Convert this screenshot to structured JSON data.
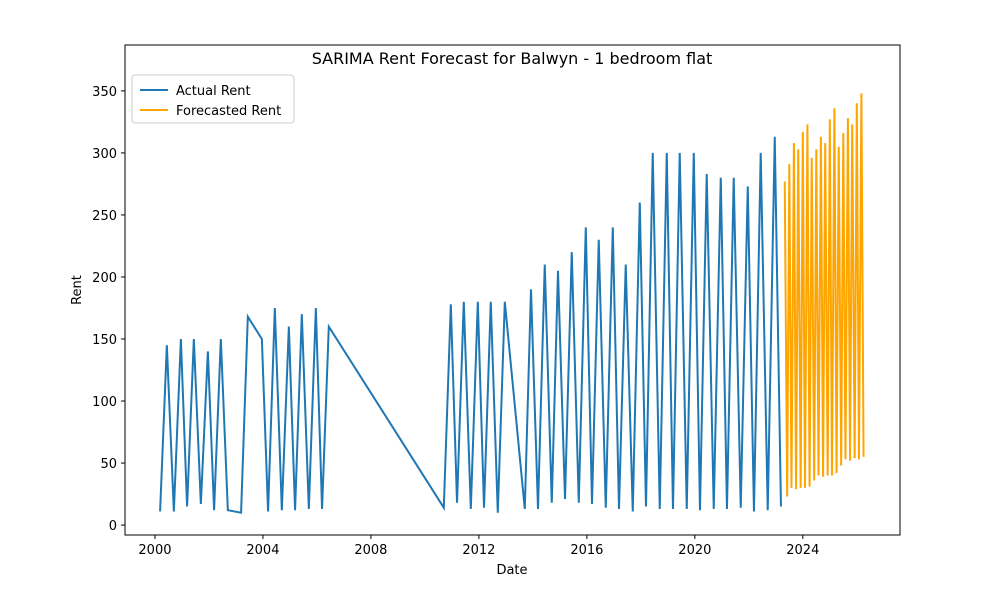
{
  "chart_data": {
    "type": "line",
    "title": "SARIMA Rent Forecast for Balwyn - 1 bedroom flat",
    "xlabel": "Date",
    "ylabel": "Rent",
    "xlim": [
      1998.89,
      2027.6
    ],
    "ylim": [
      -8,
      387
    ],
    "xticks": [
      2000,
      2004,
      2008,
      2012,
      2016,
      2020,
      2024
    ],
    "yticks": [
      0,
      50,
      100,
      150,
      200,
      250,
      300,
      350
    ],
    "legend": "upper left",
    "series": [
      {
        "name": "Actual Rent",
        "color": "#1f77b4",
        "x": [
          2000.19,
          2000.44,
          2000.7,
          2000.96,
          2001.19,
          2001.44,
          2001.7,
          2001.96,
          2002.19,
          2002.44,
          2002.7,
          2003.19,
          2003.44,
          2003.96,
          2004.19,
          2004.44,
          2004.7,
          2004.96,
          2005.19,
          2005.44,
          2005.7,
          2005.96,
          2006.19,
          2006.44,
          2010.7,
          2010.96,
          2011.19,
          2011.44,
          2011.7,
          2011.96,
          2012.19,
          2012.44,
          2012.7,
          2012.96,
          2013.7,
          2013.93,
          2014.19,
          2014.44,
          2014.7,
          2014.93,
          2015.19,
          2015.44,
          2015.7,
          2015.96,
          2016.19,
          2016.44,
          2016.7,
          2016.96,
          2017.19,
          2017.44,
          2017.7,
          2017.96,
          2018.19,
          2018.44,
          2018.7,
          2018.96,
          2019.19,
          2019.44,
          2019.7,
          2019.96,
          2020.19,
          2020.44,
          2020.7,
          2020.96,
          2021.19,
          2021.44,
          2021.7,
          2021.96,
          2022.19,
          2022.44,
          2022.7,
          2022.96,
          2023.19
        ],
        "values": [
          11,
          145,
          11,
          150,
          15,
          150,
          17,
          140,
          12,
          150,
          12,
          10,
          168,
          150,
          11,
          175,
          12,
          160,
          12,
          170,
          13,
          175,
          13,
          160,
          14,
          178,
          18,
          180,
          13,
          180,
          14,
          180,
          10,
          180,
          13,
          190,
          13,
          210,
          18,
          205,
          21,
          220,
          18,
          240,
          17,
          230,
          14,
          240,
          13,
          210,
          11,
          260,
          15,
          300,
          13,
          300,
          13,
          300,
          13,
          300,
          12,
          283,
          13,
          280,
          13,
          280,
          14,
          273,
          11,
          300,
          12,
          313,
          15
        ]
      },
      {
        "name": "Forecasted Rent",
        "color": "#ffa500",
        "x": [
          2023.33,
          2023.42,
          2023.5,
          2023.58,
          2023.67,
          2023.75,
          2023.83,
          2023.92,
          2024.0,
          2024.08,
          2024.17,
          2024.25,
          2024.33,
          2024.42,
          2024.5,
          2024.58,
          2024.67,
          2024.75,
          2024.83,
          2024.92,
          2025.0,
          2025.08,
          2025.17,
          2025.25,
          2025.33,
          2025.42,
          2025.5,
          2025.58,
          2025.67,
          2025.75,
          2025.83,
          2025.92,
          2026.0,
          2026.08,
          2026.17,
          2026.25
        ],
        "values": [
          277,
          23,
          291,
          30,
          308,
          29,
          303,
          30,
          317,
          30,
          323,
          31,
          296,
          36,
          303,
          40,
          313,
          39,
          308,
          40,
          327,
          40,
          336,
          42,
          305,
          48,
          316,
          53,
          328,
          52,
          323,
          54,
          340,
          53,
          348,
          55
        ]
      }
    ]
  }
}
